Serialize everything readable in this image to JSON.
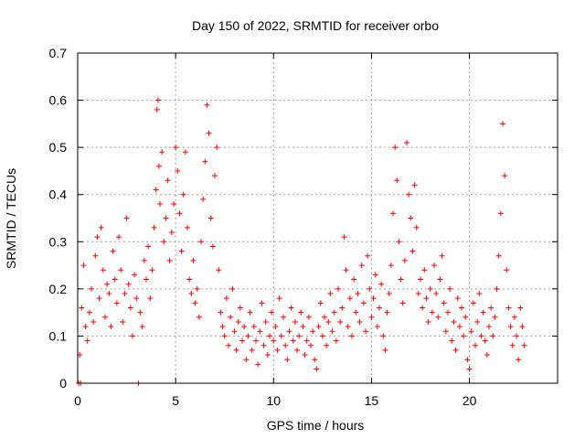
{
  "chart_data": {
    "type": "scatter",
    "title": "Day 150 of 2022, SRMTID for receiver orbo",
    "xlabel": "GPS time / hours",
    "ylabel": "SRMTID / TECUs",
    "xlim": [
      0,
      24.5
    ],
    "ylim": [
      0,
      0.7
    ],
    "x_ticks": [
      0,
      5,
      10,
      15,
      20
    ],
    "x_tick_labels": [
      "0",
      "5",
      "10",
      "15",
      "20"
    ],
    "y_ticks": [
      0,
      0.1,
      0.2,
      0.3,
      0.4,
      0.5,
      0.6,
      0.7
    ],
    "y_tick_labels": [
      "0",
      "0.1",
      "0.2",
      "0.3",
      "0.4",
      "0.5",
      "0.6",
      "0.7"
    ],
    "grid": true,
    "marker": "plus",
    "color": "#ff0000",
    "series": [
      {
        "name": "SRMTID",
        "points": [
          [
            0.05,
            0.0
          ],
          [
            0.1,
            0.06
          ],
          [
            0.15,
            0.0
          ],
          [
            0.2,
            0.16
          ],
          [
            0.3,
            0.25
          ],
          [
            0.4,
            0.12
          ],
          [
            0.5,
            0.09
          ],
          [
            0.6,
            0.15
          ],
          [
            0.7,
            0.2
          ],
          [
            0.8,
            0.13
          ],
          [
            0.9,
            0.27
          ],
          [
            1.0,
            0.31
          ],
          [
            1.1,
            0.18
          ],
          [
            1.2,
            0.33
          ],
          [
            1.3,
            0.24
          ],
          [
            1.4,
            0.14
          ],
          [
            1.5,
            0.21
          ],
          [
            1.6,
            0.19
          ],
          [
            1.7,
            0.12
          ],
          [
            1.8,
            0.28
          ],
          [
            1.9,
            0.22
          ],
          [
            2.0,
            0.17
          ],
          [
            2.1,
            0.31
          ],
          [
            2.2,
            0.24
          ],
          [
            2.3,
            0.13
          ],
          [
            2.4,
            0.19
          ],
          [
            2.5,
            0.35
          ],
          [
            2.6,
            0.21
          ],
          [
            2.7,
            0.16
          ],
          [
            2.8,
            0.1
          ],
          [
            2.9,
            0.23
          ],
          [
            3.0,
            0.18
          ],
          [
            3.1,
            0.0
          ],
          [
            3.2,
            0.15
          ],
          [
            3.3,
            0.12
          ],
          [
            3.4,
            0.26
          ],
          [
            3.5,
            0.22
          ],
          [
            3.6,
            0.29
          ],
          [
            3.7,
            0.18
          ],
          [
            3.8,
            0.24
          ],
          [
            3.9,
            0.33
          ],
          [
            4.0,
            0.41
          ],
          [
            4.05,
            0.58
          ],
          [
            4.1,
            0.6
          ],
          [
            4.15,
            0.46
          ],
          [
            4.2,
            0.38
          ],
          [
            4.3,
            0.49
          ],
          [
            4.4,
            0.3
          ],
          [
            4.5,
            0.35
          ],
          [
            4.6,
            0.43
          ],
          [
            4.7,
            0.26
          ],
          [
            4.8,
            0.32
          ],
          [
            4.9,
            0.38
          ],
          [
            5.0,
            0.5
          ],
          [
            5.1,
            0.45
          ],
          [
            5.2,
            0.36
          ],
          [
            5.3,
            0.28
          ],
          [
            5.4,
            0.4
          ],
          [
            5.5,
            0.49
          ],
          [
            5.6,
            0.33
          ],
          [
            5.7,
            0.22
          ],
          [
            5.8,
            0.19
          ],
          [
            5.9,
            0.26
          ],
          [
            6.0,
            0.17
          ],
          [
            6.1,
            0.2
          ],
          [
            6.2,
            0.14
          ],
          [
            6.3,
            0.3
          ],
          [
            6.4,
            0.39
          ],
          [
            6.5,
            0.47
          ],
          [
            6.6,
            0.59
          ],
          [
            6.7,
            0.53
          ],
          [
            6.8,
            0.35
          ],
          [
            6.9,
            0.29
          ],
          [
            7.0,
            0.44
          ],
          [
            7.1,
            0.5
          ],
          [
            7.2,
            0.24
          ],
          [
            7.3,
            0.15
          ],
          [
            7.4,
            0.12
          ],
          [
            7.5,
            0.1
          ],
          [
            7.6,
            0.18
          ],
          [
            7.7,
            0.08
          ],
          [
            7.8,
            0.14
          ],
          [
            7.9,
            0.2
          ],
          [
            8.0,
            0.11
          ],
          [
            8.1,
            0.07
          ],
          [
            8.2,
            0.13
          ],
          [
            8.3,
            0.16
          ],
          [
            8.4,
            0.09
          ],
          [
            8.5,
            0.12
          ],
          [
            8.6,
            0.05
          ],
          [
            8.7,
            0.1
          ],
          [
            8.8,
            0.15
          ],
          [
            8.9,
            0.07
          ],
          [
            9.0,
            0.12
          ],
          [
            9.1,
            0.09
          ],
          [
            9.2,
            0.04
          ],
          [
            9.3,
            0.11
          ],
          [
            9.4,
            0.17
          ],
          [
            9.5,
            0.08
          ],
          [
            9.6,
            0.13
          ],
          [
            9.7,
            0.06
          ],
          [
            9.8,
            0.1
          ],
          [
            9.9,
            0.15
          ],
          [
            10.0,
            0.09
          ],
          [
            10.1,
            0.12
          ],
          [
            10.2,
            0.07
          ],
          [
            10.3,
            0.18
          ],
          [
            10.4,
            0.1
          ],
          [
            10.5,
            0.14
          ],
          [
            10.6,
            0.08
          ],
          [
            10.7,
            0.05
          ],
          [
            10.8,
            0.11
          ],
          [
            10.9,
            0.16
          ],
          [
            11.0,
            0.09
          ],
          [
            11.1,
            0.13
          ],
          [
            11.2,
            0.07
          ],
          [
            11.3,
            0.1
          ],
          [
            11.4,
            0.15
          ],
          [
            11.5,
            0.12
          ],
          [
            11.6,
            0.06
          ],
          [
            11.7,
            0.09
          ],
          [
            11.8,
            0.14
          ],
          [
            11.9,
            0.08
          ],
          [
            12.0,
            0.11
          ],
          [
            12.1,
            0.05
          ],
          [
            12.2,
            0.03
          ],
          [
            12.3,
            0.12
          ],
          [
            12.4,
            0.17
          ],
          [
            12.5,
            0.1
          ],
          [
            12.6,
            0.14
          ],
          [
            12.7,
            0.08
          ],
          [
            12.8,
            0.13
          ],
          [
            12.9,
            0.19
          ],
          [
            13.0,
            0.11
          ],
          [
            13.1,
            0.15
          ],
          [
            13.2,
            0.09
          ],
          [
            13.3,
            0.2
          ],
          [
            13.4,
            0.13
          ],
          [
            13.5,
            0.16
          ],
          [
            13.6,
            0.31
          ],
          [
            13.7,
            0.24
          ],
          [
            13.8,
            0.12
          ],
          [
            13.9,
            0.18
          ],
          [
            14.0,
            0.1
          ],
          [
            14.1,
            0.22
          ],
          [
            14.2,
            0.15
          ],
          [
            14.3,
            0.19
          ],
          [
            14.4,
            0.13
          ],
          [
            14.5,
            0.25
          ],
          [
            14.6,
            0.17
          ],
          [
            14.7,
            0.11
          ],
          [
            14.8,
            0.27
          ],
          [
            14.9,
            0.2
          ],
          [
            15.0,
            0.14
          ],
          [
            15.1,
            0.18
          ],
          [
            15.2,
            0.23
          ],
          [
            15.3,
            0.12
          ],
          [
            15.4,
            0.16
          ],
          [
            15.5,
            0.21
          ],
          [
            15.6,
            0.1
          ],
          [
            15.7,
            0.07
          ],
          [
            15.8,
            0.15
          ],
          [
            15.9,
            0.19
          ],
          [
            16.0,
            0.25
          ],
          [
            16.1,
            0.36
          ],
          [
            16.2,
            0.5
          ],
          [
            16.3,
            0.43
          ],
          [
            16.4,
            0.3
          ],
          [
            16.5,
            0.22
          ],
          [
            16.6,
            0.17
          ],
          [
            16.7,
            0.26
          ],
          [
            16.8,
            0.51
          ],
          [
            16.9,
            0.4
          ],
          [
            17.0,
            0.35
          ],
          [
            17.1,
            0.28
          ],
          [
            17.2,
            0.42
          ],
          [
            17.3,
            0.33
          ],
          [
            17.4,
            0.19
          ],
          [
            17.5,
            0.22
          ],
          [
            17.6,
            0.16
          ],
          [
            17.7,
            0.24
          ],
          [
            17.8,
            0.18
          ],
          [
            17.9,
            0.13
          ],
          [
            18.0,
            0.2
          ],
          [
            18.1,
            0.15
          ],
          [
            18.2,
            0.25
          ],
          [
            18.3,
            0.19
          ],
          [
            18.4,
            0.14
          ],
          [
            18.5,
            0.22
          ],
          [
            18.6,
            0.27
          ],
          [
            18.7,
            0.17
          ],
          [
            18.8,
            0.11
          ],
          [
            18.9,
            0.15
          ],
          [
            19.0,
            0.2
          ],
          [
            19.1,
            0.09
          ],
          [
            19.2,
            0.13
          ],
          [
            19.3,
            0.07
          ],
          [
            19.4,
            0.18
          ],
          [
            19.5,
            0.12
          ],
          [
            19.6,
            0.16
          ],
          [
            19.7,
            0.1
          ],
          [
            19.8,
            0.14
          ],
          [
            19.9,
            0.05
          ],
          [
            20.0,
            0.03
          ],
          [
            20.1,
            0.11
          ],
          [
            20.2,
            0.17
          ],
          [
            20.3,
            0.08
          ],
          [
            20.4,
            0.13
          ],
          [
            20.5,
            0.19
          ],
          [
            20.6,
            0.1
          ],
          [
            20.7,
            0.15
          ],
          [
            20.8,
            0.09
          ],
          [
            20.9,
            0.06
          ],
          [
            21.0,
            0.12
          ],
          [
            21.1,
            0.16
          ],
          [
            21.2,
            0.1
          ],
          [
            21.3,
            0.14
          ],
          [
            21.4,
            0.2
          ],
          [
            21.5,
            0.27
          ],
          [
            21.6,
            0.36
          ],
          [
            21.7,
            0.55
          ],
          [
            21.8,
            0.44
          ],
          [
            21.9,
            0.24
          ],
          [
            22.0,
            0.16
          ],
          [
            22.1,
            0.12
          ],
          [
            22.2,
            0.08
          ],
          [
            22.3,
            0.14
          ],
          [
            22.4,
            0.1
          ],
          [
            22.5,
            0.05
          ],
          [
            22.6,
            0.16
          ],
          [
            22.7,
            0.12
          ],
          [
            22.8,
            0.08
          ]
        ]
      }
    ]
  }
}
